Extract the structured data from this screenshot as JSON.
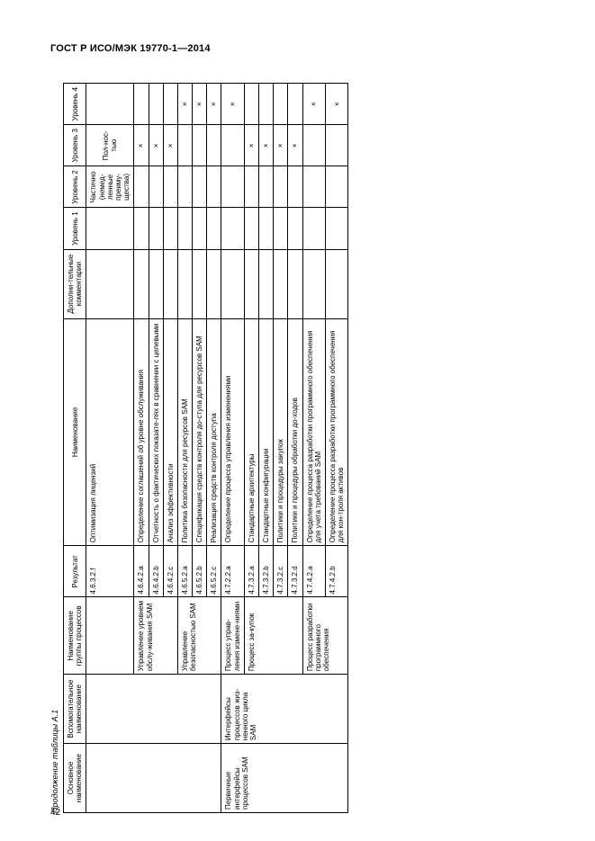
{
  "doc_id": "ГОСТ Р ИСО/МЭК 19770-1—2014",
  "caption": "Продолжение таблицы А.1",
  "page_num": "42",
  "headers": {
    "c_main": "Основное наименование",
    "c_aux": "Вспомогательное наименование",
    "c_grp": "Наименование группы процессов",
    "c_res": "Результат",
    "c_name": "Наименование",
    "c_com": "Дополни-тельные комментарии",
    "c_l1": "Уровень 1",
    "c_l2": "Уровень 2",
    "c_l3": "Уровень 3",
    "c_l4": "Уровень 4"
  },
  "block1": {
    "group_a": "Управление уровнем обслу-живания SAM",
    "group_b": "Управление безопасностью SAM",
    "rows": [
      {
        "res": "4.6.3.2.f",
        "name": "Оптимизация лицензий",
        "l1": "",
        "l2": "Частично (немед-ленные преиму-щества)",
        "l3": "Пол-нос-тью",
        "l4": ""
      },
      {
        "res": "4.6.4.2.a",
        "name": "Определение соглашений об уровне обслуживания",
        "l1": "",
        "l2": "",
        "l3": "×",
        "l4": ""
      },
      {
        "res": "4.6.4.2.b",
        "name": "Отчетность о фактических показате-лях в сравнении с целевыми",
        "l1": "",
        "l2": "",
        "l3": "×",
        "l4": ""
      },
      {
        "res": "4.6.4.2.c",
        "name": "Анализ эффективности",
        "l1": "",
        "l2": "",
        "l3": "×",
        "l4": ""
      },
      {
        "res": "4.6.5.2.a",
        "name": "Политика безопасности для ресурсов SAM",
        "l1": "",
        "l2": "",
        "l3": "",
        "l4": "×"
      },
      {
        "res": "4.6.5.2.b",
        "name": "Спецификация средств контроля до-ступа для ресурсов SAM",
        "l1": "",
        "l2": "",
        "l3": "",
        "l4": "×"
      },
      {
        "res": "4.6.5.2.c",
        "name": "Реализация средств контроля доступа",
        "l1": "",
        "l2": "",
        "l3": "",
        "l4": "×"
      }
    ]
  },
  "block2": {
    "main": "Первичные интерфейсы процессов SAM",
    "aux": "Интерфейсы процессов жиз-ненного цикла SAM",
    "group_a": "Процесс управ-ления измене-ниями",
    "group_b": "Процесс за-купок",
    "group_c": "Процесс разработки программного обеспечения",
    "rows": [
      {
        "res": "4.7.2.2.a",
        "name": "Определение процесса управления изменениями",
        "l1": "",
        "l2": "",
        "l3": "",
        "l4": "×"
      },
      {
        "res": "4.7.3.2.a",
        "name": "Стандартные архитектуры",
        "l1": "",
        "l2": "",
        "l3": "×",
        "l4": ""
      },
      {
        "res": "4.7.3.2.b",
        "name": "Стандартные конфигурации",
        "l1": "",
        "l2": "",
        "l3": "×",
        "l4": ""
      },
      {
        "res": "4.7.3.2.c",
        "name": "Политики и процедуры закупок",
        "l1": "",
        "l2": "",
        "l3": "×",
        "l4": ""
      },
      {
        "res": "4.7.3.2.d",
        "name": "Политики и процедуры обработки до-ходов",
        "l1": "",
        "l2": "",
        "l3": "×",
        "l4": ""
      },
      {
        "res": "4.7.4.2.a",
        "name": "Определение процесса разработки программного обеспечения для учета требований SAM",
        "l1": "",
        "l2": "",
        "l3": "",
        "l4": "×"
      },
      {
        "res": "4.7.4.2.b",
        "name": "Определение процесса разработки программного обеспечения для кон-троля активов",
        "l1": "",
        "l2": "",
        "l3": "",
        "l4": "×"
      }
    ]
  }
}
